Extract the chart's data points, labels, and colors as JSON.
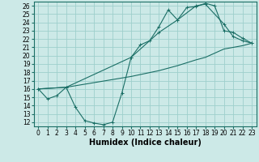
{
  "xlabel": "Humidex (Indice chaleur)",
  "background_color": "#cce9e7",
  "grid_color": "#9ecfcc",
  "line_color": "#1a6e65",
  "xlim": [
    -0.5,
    23.5
  ],
  "ylim": [
    11.5,
    26.5
  ],
  "xticks": [
    0,
    1,
    2,
    3,
    4,
    5,
    6,
    7,
    8,
    9,
    10,
    11,
    12,
    13,
    14,
    15,
    16,
    17,
    18,
    19,
    20,
    21,
    22,
    23
  ],
  "yticks": [
    12,
    13,
    14,
    15,
    16,
    17,
    18,
    19,
    20,
    21,
    22,
    23,
    24,
    25,
    26
  ],
  "series1_x": [
    0,
    1,
    2,
    3,
    4,
    5,
    6,
    7,
    8,
    9,
    10,
    11,
    12,
    13,
    14,
    15,
    16,
    17,
    18,
    19,
    20,
    21,
    22,
    23
  ],
  "series1_y": [
    16.0,
    14.8,
    15.2,
    16.2,
    13.8,
    12.2,
    11.9,
    11.7,
    12.0,
    15.5,
    19.8,
    21.3,
    21.8,
    23.5,
    25.5,
    24.3,
    25.8,
    25.9,
    26.3,
    26.0,
    23.0,
    22.8,
    22.1,
    21.5
  ],
  "series2_x": [
    0,
    3,
    10,
    13,
    15,
    17,
    18,
    20,
    21,
    22,
    23
  ],
  "series2_y": [
    16.0,
    16.2,
    19.8,
    22.8,
    24.3,
    26.0,
    26.2,
    23.8,
    22.3,
    21.8,
    21.5
  ],
  "series3_x": [
    0,
    3,
    10,
    13,
    15,
    17,
    18,
    20,
    21,
    22,
    23
  ],
  "series3_y": [
    16.0,
    16.2,
    17.5,
    18.2,
    18.8,
    19.5,
    19.8,
    20.8,
    21.0,
    21.2,
    21.5
  ],
  "xlabel_fontsize": 7,
  "tick_fontsize": 5.5
}
